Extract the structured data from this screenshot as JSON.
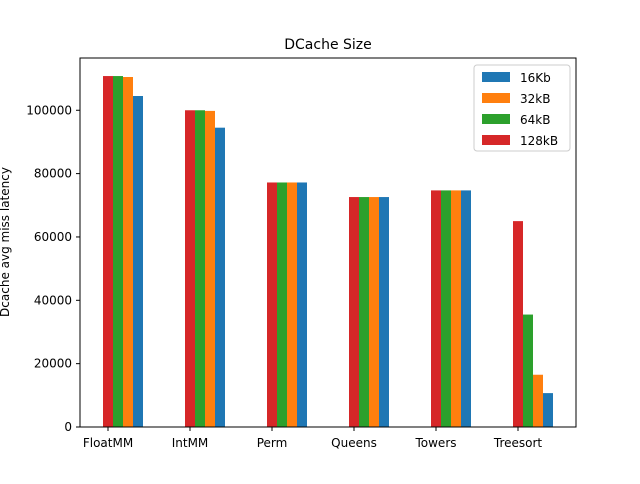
{
  "chart_data": {
    "type": "bar",
    "title": "DCache Size",
    "xlabel": "",
    "ylabel": "Dcache avg miss latency",
    "categories": [
      "FloatMM",
      "IntMM",
      "Perm",
      "Queens",
      "Towers",
      "Treesort"
    ],
    "series": [
      {
        "name": "128kB",
        "color": "#d62728",
        "values": [
          110800,
          100000,
          77200,
          72600,
          74700,
          65000
        ]
      },
      {
        "name": "64kB",
        "color": "#2ca02c",
        "values": [
          110800,
          100000,
          77200,
          72600,
          74700,
          35500
        ]
      },
      {
        "name": "32kB",
        "color": "#ff7f0e",
        "values": [
          110500,
          99800,
          77200,
          72600,
          74700,
          16500
        ]
      },
      {
        "name": "16Kb",
        "color": "#1f77b4",
        "values": [
          104500,
          94500,
          77200,
          72600,
          74700,
          10700
        ]
      }
    ],
    "legend_order": [
      "16Kb",
      "32kB",
      "64kB",
      "128kB"
    ],
    "legend_position": "upper right",
    "ylim": [
      0,
      116500
    ],
    "yticks": [
      0,
      20000,
      40000,
      60000,
      80000,
      100000
    ],
    "grid": false
  }
}
